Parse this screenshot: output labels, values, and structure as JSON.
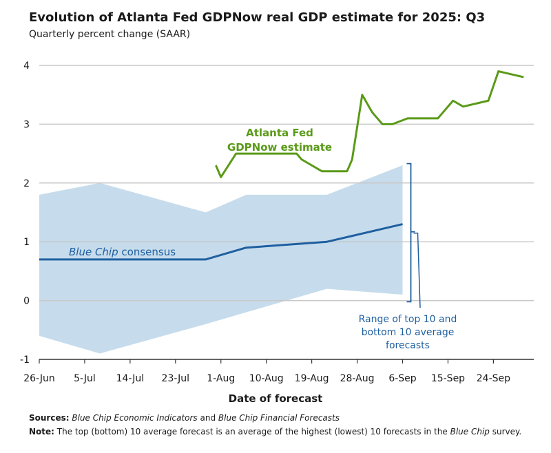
{
  "chart_data": {
    "type": "line",
    "title": "Evolution of Atlanta Fed GDPNow real GDP estimate for 2025: Q3",
    "subtitle": "Quarterly percent change (SAAR)",
    "xlabel": "Date of forecast",
    "ylabel": "",
    "ylim": [
      -1,
      4
    ],
    "yticks": [
      "-1",
      "0",
      "1",
      "2",
      "3",
      "4"
    ],
    "xticks": [
      "26-Jun",
      "5-Jul",
      "14-Jul",
      "23-Jul",
      "1-Aug",
      "10-Aug",
      "19-Aug",
      "28-Aug",
      "6-Sep",
      "15-Sep",
      "24-Sep"
    ],
    "xtick_days": [
      0,
      9,
      18,
      27,
      36,
      45,
      54,
      63,
      72,
      81,
      90
    ],
    "xlim_days": [
      0,
      98
    ],
    "grid": "horizontal",
    "series": [
      {
        "name": "Atlanta Fed GDPNow estimate",
        "color": "#5a9a18",
        "x_days": [
          35,
          36,
          39,
          40,
          45,
          46,
          51,
          52,
          56,
          58,
          61,
          62,
          64,
          66,
          68,
          70,
          73,
          75,
          79,
          81,
          82,
          84,
          89,
          91,
          96
        ],
        "values": [
          2.3,
          2.1,
          2.5,
          2.5,
          2.5,
          2.5,
          2.5,
          2.4,
          2.2,
          2.2,
          2.2,
          2.4,
          3.5,
          3.2,
          3.0,
          3.0,
          3.1,
          3.1,
          3.1,
          3.3,
          3.4,
          3.3,
          3.4,
          3.9,
          3.8
        ],
        "label": [
          "Atlanta Fed",
          "GDPNow estimate"
        ]
      },
      {
        "name": "Blue Chip consensus",
        "color": "#1f5fa0",
        "x_days": [
          0,
          33,
          41,
          57,
          72
        ],
        "values": [
          0.7,
          0.7,
          0.9,
          1.0,
          1.3
        ],
        "label_italic": "Blue Chip",
        "label_rest": " consensus"
      }
    ],
    "band": {
      "name": "Range of top 10 and bottom 10 average forecasts",
      "color": "#c6dcec",
      "x_days": [
        0,
        12,
        33,
        41,
        57,
        72
      ],
      "upper": [
        1.8,
        2.0,
        1.5,
        1.8,
        1.8,
        2.3
      ],
      "lower": [
        -0.6,
        -0.9,
        -0.4,
        -0.2,
        0.2,
        0.1
      ],
      "label": [
        "Range of top 10 and",
        "bottom 10 average",
        "forecasts"
      ]
    }
  },
  "footer": {
    "sources_label": "Sources:",
    "sources_italic_1": "Blue Chip Economic Indicators",
    "sources_mid": " and ",
    "sources_italic_2": "Blue Chip Financial Forecasts",
    "note_label": "Note:",
    "note_text": " The top (bottom) 10 average forecast is an average of the highest (lowest) 10 forecasts in the ",
    "note_italic": "Blue Chip",
    "note_end": " survey."
  },
  "colors": {
    "axis": "#333333",
    "grid": "#c8c8c8",
    "annotation_blue": "#1f5fa0"
  }
}
